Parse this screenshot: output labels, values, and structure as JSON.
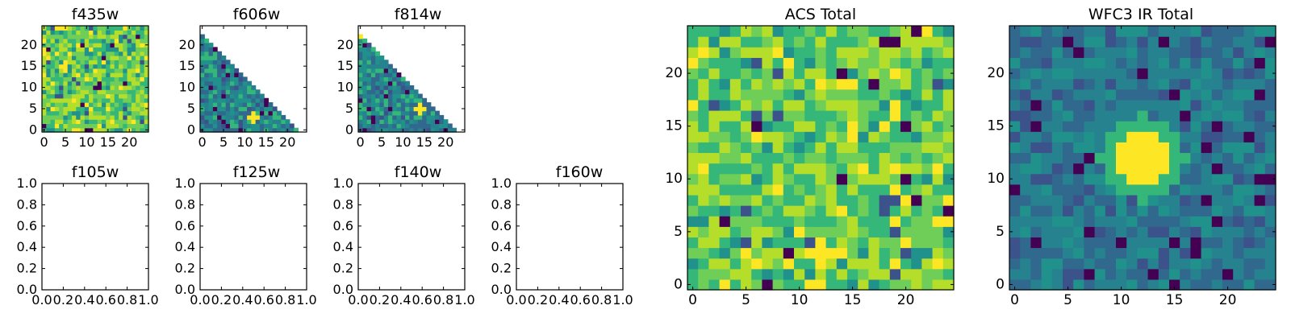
{
  "figure": {
    "background": "#ffffff",
    "colormap": "viridis"
  },
  "chart_data": [
    {
      "id": "f435w",
      "type": "heatmap",
      "title": "f435w",
      "grid_size": 25,
      "mask": "full",
      "style": "bright",
      "seed": 11,
      "hot_spots": [],
      "xlim": [
        -0.5,
        24.5
      ],
      "ylim": [
        -0.5,
        24.5
      ],
      "xticks": [
        0,
        5,
        10,
        15,
        20
      ],
      "xtick_labels": [
        "0",
        "5",
        "10",
        "15",
        "20"
      ],
      "yticks": [
        0,
        5,
        10,
        15,
        20
      ],
      "ytick_labels": [
        "0",
        "5",
        "10",
        "15",
        "20"
      ]
    },
    {
      "id": "f606w",
      "type": "heatmap",
      "title": "f606w",
      "grid_size": 25,
      "mask": "lower-left-triangle",
      "style": "dim",
      "seed": 23,
      "hot_spots": [
        {
          "x": 12,
          "y": 3
        }
      ],
      "xlim": [
        -0.5,
        24.5
      ],
      "ylim": [
        -0.5,
        24.5
      ],
      "xticks": [
        0,
        5,
        10,
        15,
        20
      ],
      "xtick_labels": [
        "0",
        "5",
        "10",
        "15",
        "20"
      ],
      "yticks": [
        0,
        5,
        10,
        15,
        20
      ],
      "ytick_labels": [
        "0",
        "5",
        "10",
        "15",
        "20"
      ]
    },
    {
      "id": "f814w",
      "type": "heatmap",
      "title": "f814w",
      "grid_size": 25,
      "mask": "lower-left-triangle",
      "style": "dim",
      "seed": 37,
      "hot_spots": [
        {
          "x": 0,
          "y": 23
        },
        {
          "x": 14,
          "y": 5
        }
      ],
      "xlim": [
        -0.5,
        24.5
      ],
      "ylim": [
        -0.5,
        24.5
      ],
      "xticks": [
        0,
        5,
        10,
        15,
        20
      ],
      "xtick_labels": [
        "0",
        "5",
        "10",
        "15",
        "20"
      ],
      "yticks": [
        0,
        5,
        10,
        15,
        20
      ],
      "ytick_labels": [
        "0",
        "5",
        "10",
        "15",
        "20"
      ]
    },
    {
      "id": "f105w",
      "type": "empty",
      "title": "f105w",
      "xlim": [
        0,
        1
      ],
      "ylim": [
        0,
        1
      ],
      "xticks": [
        0,
        0.2,
        0.4,
        0.6,
        0.8,
        1.0
      ],
      "xtick_labels": [
        "0.0",
        "0.2",
        "0.4",
        "0.6",
        "0.8",
        "1.0"
      ],
      "yticks": [
        0,
        0.2,
        0.4,
        0.6,
        0.8,
        1.0
      ],
      "ytick_labels": [
        "0.0",
        "0.2",
        "0.4",
        "0.6",
        "0.8",
        "1.0"
      ]
    },
    {
      "id": "f125w",
      "type": "empty",
      "title": "f125w",
      "xlim": [
        0,
        1
      ],
      "ylim": [
        0,
        1
      ],
      "xticks": [
        0,
        0.2,
        0.4,
        0.6,
        0.8,
        1.0
      ],
      "xtick_labels": [
        "0.0",
        "0.2",
        "0.4",
        "0.6",
        "0.8",
        "1.0"
      ],
      "yticks": [
        0,
        0.2,
        0.4,
        0.6,
        0.8,
        1.0
      ],
      "ytick_labels": [
        "0.0",
        "0.2",
        "0.4",
        "0.6",
        "0.8",
        "1.0"
      ]
    },
    {
      "id": "f140w",
      "type": "empty",
      "title": "f140w",
      "xlim": [
        0,
        1
      ],
      "ylim": [
        0,
        1
      ],
      "xticks": [
        0,
        0.2,
        0.4,
        0.6,
        0.8,
        1.0
      ],
      "xtick_labels": [
        "0.0",
        "0.2",
        "0.4",
        "0.6",
        "0.8",
        "1.0"
      ],
      "yticks": [
        0,
        0.2,
        0.4,
        0.6,
        0.8,
        1.0
      ],
      "ytick_labels": [
        "0.0",
        "0.2",
        "0.4",
        "0.6",
        "0.8",
        "1.0"
      ]
    },
    {
      "id": "f160w",
      "type": "empty",
      "title": "f160w",
      "xlim": [
        0,
        1
      ],
      "ylim": [
        0,
        1
      ],
      "xticks": [
        0,
        0.2,
        0.4,
        0.6,
        0.8,
        1.0
      ],
      "xtick_labels": [
        "0.0",
        "0.2",
        "0.4",
        "0.6",
        "0.8",
        "1.0"
      ],
      "yticks": [
        0,
        0.2,
        0.4,
        0.6,
        0.8,
        1.0
      ],
      "ytick_labels": [
        "0.0",
        "0.2",
        "0.4",
        "0.6",
        "0.8",
        "1.0"
      ]
    },
    {
      "id": "acs-total",
      "type": "heatmap",
      "title": "ACS Total",
      "grid_size": 25,
      "mask": "full",
      "style": "bright",
      "seed": 53,
      "hot_spots": [
        {
          "x": 12,
          "y": 3
        }
      ],
      "xlim": [
        -0.5,
        24.5
      ],
      "ylim": [
        -0.5,
        24.5
      ],
      "xticks": [
        0,
        5,
        10,
        15,
        20
      ],
      "xtick_labels": [
        "0",
        "5",
        "10",
        "15",
        "20"
      ],
      "yticks": [
        0,
        5,
        10,
        15,
        20
      ],
      "ytick_labels": [
        "0",
        "5",
        "10",
        "15",
        "20"
      ]
    },
    {
      "id": "wfc3-ir-total",
      "type": "heatmap",
      "title": "WFC3 IR Total",
      "grid_size": 25,
      "mask": "full",
      "style": "blob",
      "seed": 71,
      "hot_spots": [
        {
          "x": 12,
          "y": 12
        }
      ],
      "xlim": [
        -0.5,
        24.5
      ],
      "ylim": [
        -0.5,
        24.5
      ],
      "xticks": [
        0,
        5,
        10,
        15,
        20
      ],
      "xtick_labels": [
        "0",
        "5",
        "10",
        "15",
        "20"
      ],
      "yticks": [
        0,
        5,
        10,
        15,
        20
      ],
      "ytick_labels": [
        "0",
        "5",
        "10",
        "15",
        "20"
      ]
    }
  ]
}
